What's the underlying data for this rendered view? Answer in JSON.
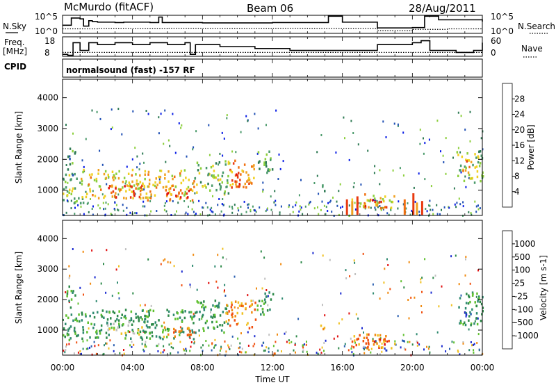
{
  "header": {
    "station": "McMurdo (fitACF)",
    "beam": "Beam 06",
    "date": "28/Aug/2011"
  },
  "noise_panel": {
    "left_label": "N.Sky",
    "right_label": "N.Search",
    "ticks_left": [
      "10^5",
      "10^0"
    ],
    "ticks_right": [
      "10^5",
      "10^0"
    ]
  },
  "freq_panel": {
    "left_label_1": "Freq.",
    "left_label_2": "[MHz]",
    "right_label": "Nave",
    "ticks_left": [
      "18",
      "8"
    ],
    "ticks_right": [
      "60",
      "0"
    ]
  },
  "cpid": {
    "label": "CPID",
    "value": "normalsound (fast) -157 RF"
  },
  "x_axis": {
    "label": "Time UT",
    "ticks": [
      "00:00",
      "04:00",
      "08:00",
      "12:00",
      "16:00",
      "20:00",
      "00:00"
    ]
  },
  "colors": {
    "power": [
      "#0a1ee6",
      "#1f4fb4",
      "#2e7a54",
      "#4a9a6a",
      "#8ccf3c",
      "#f0d020",
      "#f0a020",
      "#f07010",
      "#e83a10",
      "#e01010"
    ],
    "velocity": [
      "#e01010",
      "#f05010",
      "#f08a10",
      "#f0c020",
      "#c0c0c0",
      "#60c030",
      "#2e8a4a",
      "#2f8a70",
      "#2a5fb0",
      "#1a2ad0"
    ]
  },
  "chart_data": [
    {
      "type": "line",
      "panel": "noise",
      "title": "",
      "xlabel": "",
      "ylabel": "N.Sky",
      "series": [
        {
          "name": "N.Sky",
          "style": "solid",
          "x": [
            0,
            0.3,
            0.5,
            1.0,
            1.2,
            1.5,
            1.7,
            2.0,
            3.0,
            3.5,
            5.0,
            5.5,
            5.7,
            8.0,
            12.0,
            14.8,
            15.2,
            16.0,
            17.5,
            18.0,
            19.0,
            20.0,
            20.7,
            21.5,
            24.0
          ],
          "values": [
            0.45,
            0.45,
            0.85,
            0.8,
            0.4,
            0.7,
            0.65,
            0.62,
            0.6,
            0.62,
            0.6,
            0.9,
            0.6,
            0.58,
            0.6,
            0.6,
            0.95,
            0.62,
            0.62,
            0.3,
            0.3,
            0.32,
            0.95,
            0.75,
            0.65
          ]
        },
        {
          "name": "N.Search",
          "style": "dotted",
          "x": [
            0,
            2,
            4,
            6,
            8,
            10,
            12,
            14,
            16,
            18,
            20,
            22,
            24
          ],
          "values": [
            0.25,
            0.27,
            0.26,
            0.28,
            0.27,
            0.27,
            0.28,
            0.27,
            0.27,
            0.15,
            0.22,
            0.25,
            0.26
          ]
        }
      ]
    },
    {
      "type": "line",
      "panel": "frequency",
      "title": "",
      "xlabel": "",
      "ylabel": "Freq. [MHz]",
      "series": [
        {
          "name": "Freq",
          "style": "solid",
          "x": [
            0,
            0.3,
            0.6,
            1.0,
            1.5,
            2.0,
            3.0,
            4.0,
            5.0,
            6.0,
            7.0,
            7.3,
            7.6,
            9.0,
            11.0,
            12.0,
            13.0,
            16.0,
            17.0,
            18.0,
            20.0,
            20.5,
            21.0,
            22.5,
            23.5,
            24.0
          ],
          "values": [
            9,
            8.5,
            15,
            11,
            15,
            14,
            15,
            14,
            15,
            14,
            15,
            9,
            14,
            13,
            12,
            12,
            11,
            11,
            11,
            14,
            15,
            16,
            11,
            10,
            11,
            15
          ]
        },
        {
          "name": "Nave",
          "style": "dotted",
          "x": [
            0,
            4,
            8,
            12,
            16,
            20,
            24
          ],
          "values": [
            10,
            10,
            10,
            10,
            10,
            10,
            10
          ]
        }
      ]
    },
    {
      "type": "heatmap",
      "panel": "power",
      "title": "",
      "xlabel": "",
      "ylabel": "Slant Range [km]",
      "ylim": [
        180,
        4600
      ],
      "xlim": [
        0,
        24
      ],
      "y_ticks": [
        1000,
        2000,
        3000,
        4000
      ],
      "colorbar": {
        "label": "Power [dB]",
        "ticks": [
          4,
          8,
          12,
          16,
          20,
          24,
          28
        ],
        "range": [
          0,
          32
        ]
      },
      "blobs": [
        {
          "t0": 0.0,
          "t1": 1.2,
          "r0": 600,
          "r1": 1600,
          "v": 14
        },
        {
          "t0": 0.2,
          "t1": 0.7,
          "r0": 1500,
          "r1": 2500,
          "v": 10
        },
        {
          "t0": 1.0,
          "t1": 5.0,
          "r0": 750,
          "r1": 1700,
          "v": 18
        },
        {
          "t0": 2.5,
          "t1": 4.5,
          "r0": 800,
          "r1": 1200,
          "v": 28
        },
        {
          "t0": 4.5,
          "t1": 7.5,
          "r0": 700,
          "r1": 1700,
          "v": 20
        },
        {
          "t0": 5.5,
          "t1": 7.4,
          "r0": 800,
          "r1": 1100,
          "v": 27
        },
        {
          "t0": 7.5,
          "t1": 9.5,
          "r0": 900,
          "r1": 2000,
          "v": 14
        },
        {
          "t0": 9.3,
          "t1": 11.0,
          "r0": 1100,
          "r1": 2000,
          "v": 22
        },
        {
          "t0": 9.8,
          "t1": 10.6,
          "r0": 1150,
          "r1": 1600,
          "v": 29
        },
        {
          "t0": 11.0,
          "t1": 12.0,
          "r0": 1500,
          "r1": 2300,
          "v": 11
        },
        {
          "t0": 14.7,
          "t1": 15.0,
          "r0": 1000,
          "r1": 1400,
          "v": 9
        },
        {
          "t0": 16.5,
          "t1": 19.0,
          "r0": 400,
          "r1": 900,
          "v": 18
        },
        {
          "t0": 17.2,
          "t1": 18.5,
          "r0": 450,
          "r1": 750,
          "v": 26
        },
        {
          "t0": 22.5,
          "t1": 24.0,
          "r0": 1200,
          "r1": 2300,
          "v": 14
        },
        {
          "t0": 22.8,
          "t1": 23.4,
          "r0": 1500,
          "r1": 2000,
          "v": 22
        }
      ],
      "streaks": [
        {
          "t": 16.2,
          "r0": 200,
          "r1": 700,
          "v": 26
        },
        {
          "t": 16.5,
          "r0": 200,
          "r1": 650,
          "v": 22
        },
        {
          "t": 16.8,
          "r0": 200,
          "r1": 800,
          "v": 28
        },
        {
          "t": 19.5,
          "r0": 200,
          "r1": 700,
          "v": 24
        },
        {
          "t": 20.0,
          "r0": 200,
          "r1": 900,
          "v": 28
        },
        {
          "t": 20.2,
          "r0": 200,
          "r1": 600,
          "v": 20
        },
        {
          "t": 20.5,
          "r0": 200,
          "r1": 650,
          "v": 26
        }
      ]
    },
    {
      "type": "heatmap",
      "panel": "velocity",
      "title": "",
      "xlabel": "Time UT",
      "ylabel": "Slant Range [km]",
      "ylim": [
        180,
        4600
      ],
      "xlim": [
        0,
        24
      ],
      "y_ticks": [
        1000,
        2000,
        3000,
        4000
      ],
      "colorbar": {
        "label": "Velocity [m s-1]",
        "ticks": [
          1000,
          500,
          100,
          25,
          -25,
          -100,
          -500,
          -1000
        ]
      },
      "blobs": [
        {
          "t0": 0.0,
          "t1": 1.2,
          "r0": 600,
          "r1": 1600,
          "c": 6
        },
        {
          "t0": 0.2,
          "t1": 0.7,
          "r0": 1500,
          "r1": 2500,
          "c": 6
        },
        {
          "t0": 1.0,
          "t1": 5.0,
          "r0": 750,
          "r1": 1700,
          "c": 6
        },
        {
          "t0": 2.5,
          "t1": 4.5,
          "r0": 900,
          "r1": 1300,
          "c": 4
        },
        {
          "t0": 4.5,
          "t1": 7.5,
          "r0": 700,
          "r1": 1700,
          "c": 6
        },
        {
          "t0": 5.5,
          "t1": 7.5,
          "r0": 800,
          "r1": 1200,
          "c": 2
        },
        {
          "t0": 7.5,
          "t1": 9.5,
          "r0": 900,
          "r1": 2000,
          "c": 6
        },
        {
          "t0": 9.3,
          "t1": 11.0,
          "r0": 1100,
          "r1": 2000,
          "c": 2
        },
        {
          "t0": 11.0,
          "t1": 12.0,
          "r0": 1500,
          "r1": 2300,
          "c": 6
        },
        {
          "t0": 14.7,
          "t1": 15.0,
          "r0": 1000,
          "r1": 1400,
          "c": 2
        },
        {
          "t0": 16.5,
          "t1": 19.0,
          "r0": 400,
          "r1": 900,
          "c": 2
        },
        {
          "t0": 17.2,
          "t1": 18.5,
          "r0": 450,
          "r1": 750,
          "c": 1
        },
        {
          "t0": 22.5,
          "t1": 24.0,
          "r0": 1200,
          "r1": 2300,
          "c": 6
        },
        {
          "t0": 22.8,
          "t1": 23.4,
          "r0": 1500,
          "r1": 2000,
          "c": 8
        }
      ]
    }
  ]
}
